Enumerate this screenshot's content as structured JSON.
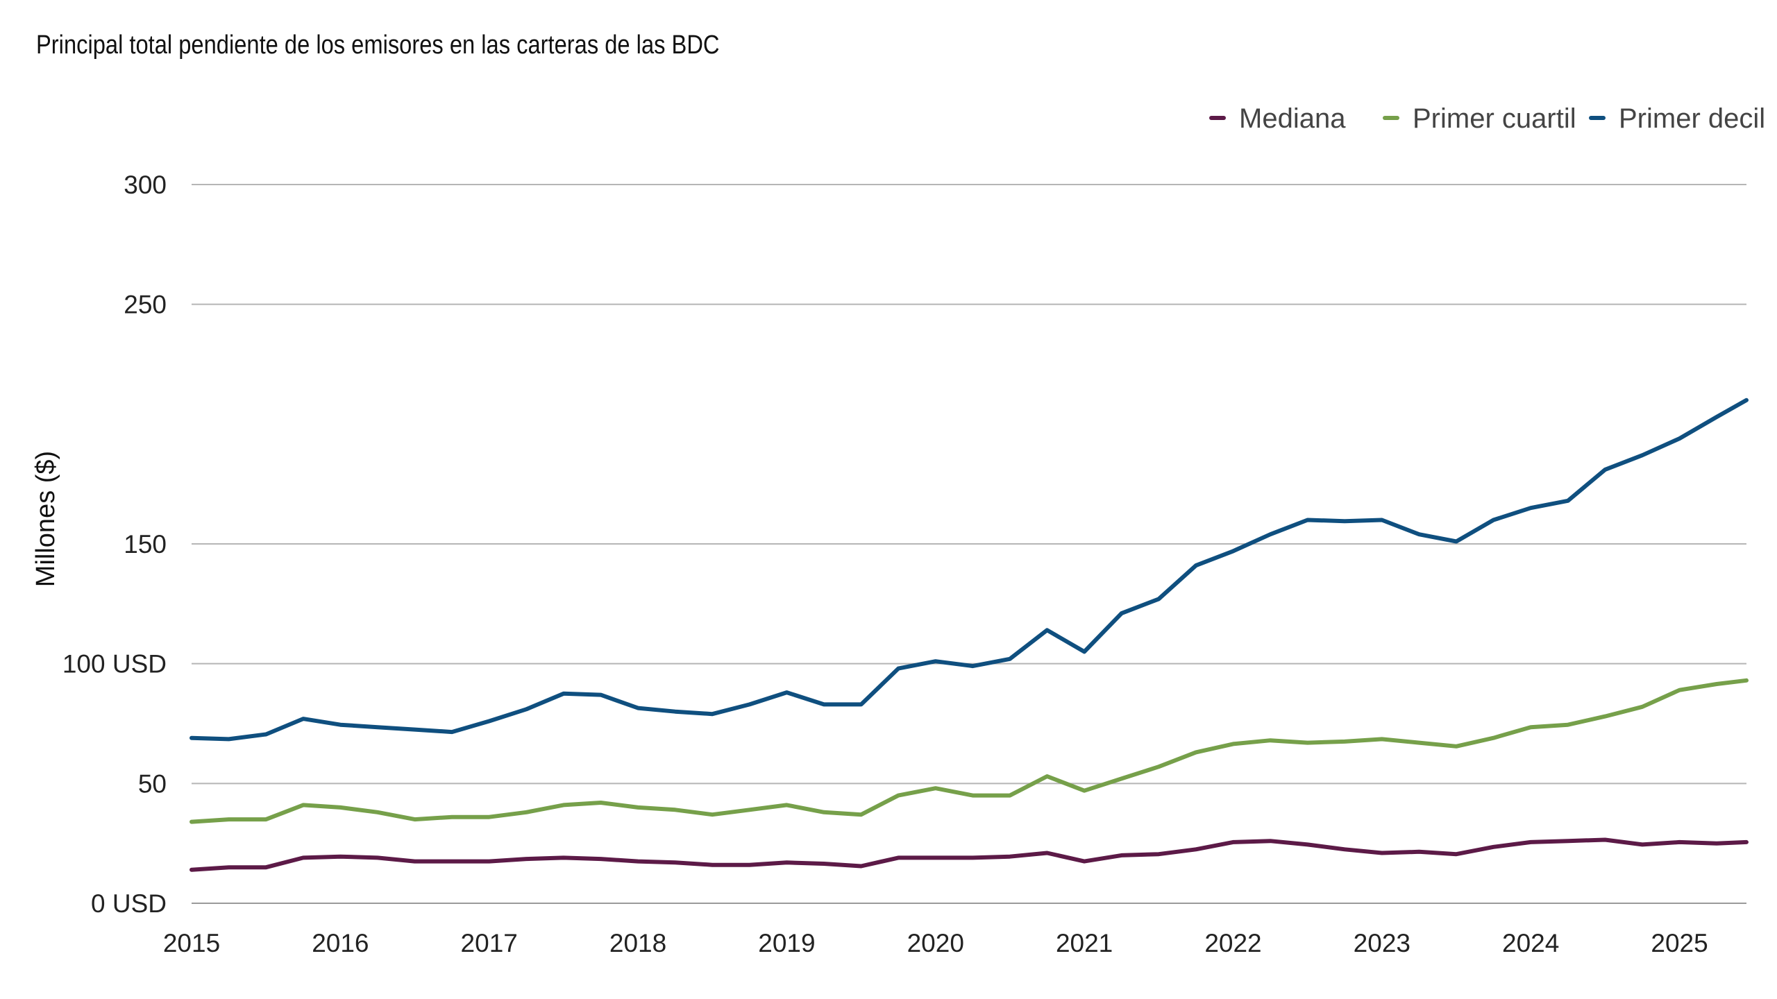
{
  "chart_data": {
    "type": "line",
    "title": "Principal total pendiente de los emisores en las carteras de las BDC",
    "xlabel": "",
    "ylabel": "Millones ($)",
    "xlim": [
      2015,
      2025.45
    ],
    "ylim": [
      0,
      300
    ],
    "x_ticks": [
      2015,
      2016,
      2017,
      2018,
      2019,
      2020,
      2021,
      2022,
      2023,
      2024,
      2025
    ],
    "x_tick_labels": [
      "2015",
      "2016",
      "2017",
      "2018",
      "2019",
      "2020",
      "2021",
      "2022",
      "2023",
      "2024",
      "2025"
    ],
    "y_ticks": [
      0,
      50,
      100,
      150,
      250,
      300
    ],
    "y_tick_labels": [
      "0 USD",
      "50",
      "100 USD",
      "150",
      "250",
      "300"
    ],
    "grid": "horizontal",
    "legend_position": "top-right",
    "x": [
      2015.0,
      2015.25,
      2015.5,
      2015.75,
      2016.0,
      2016.25,
      2016.5,
      2016.75,
      2017.0,
      2017.25,
      2017.5,
      2017.75,
      2018.0,
      2018.25,
      2018.5,
      2018.75,
      2019.0,
      2019.25,
      2019.5,
      2019.75,
      2020.0,
      2020.25,
      2020.5,
      2020.75,
      2021.0,
      2021.25,
      2021.5,
      2021.75,
      2022.0,
      2022.25,
      2022.5,
      2022.75,
      2023.0,
      2023.25,
      2023.5,
      2023.75,
      2024.0,
      2024.25,
      2024.5,
      2024.75,
      2025.0,
      2025.25,
      2025.45
    ],
    "series": [
      {
        "name": "Mediana",
        "color": "#5c1a47",
        "values": [
          14,
          15,
          15,
          19,
          19.5,
          19,
          17.5,
          17.5,
          17.5,
          18.5,
          19,
          18.5,
          17.5,
          17,
          16,
          16,
          17,
          16.5,
          15.5,
          19,
          19,
          19,
          19.5,
          21,
          17.5,
          20,
          20.5,
          22.5,
          25.5,
          26,
          24.5,
          22.5,
          21,
          21.5,
          20.5,
          23.5,
          25.5,
          26,
          26.5,
          24.5,
          25.5,
          25,
          25.5
        ]
      },
      {
        "name": "Primer cuartil",
        "color": "#76a04a",
        "values": [
          34,
          35,
          35,
          41,
          40,
          38,
          35,
          36,
          36,
          38,
          41,
          42,
          40,
          39,
          37,
          39,
          41,
          38,
          37,
          45,
          48,
          45,
          45,
          53,
          47,
          52,
          57,
          63,
          66.5,
          68,
          67,
          67.5,
          68.5,
          67,
          65.5,
          69,
          73.5,
          74.5,
          78,
          82,
          89,
          91.5,
          93
        ]
      },
      {
        "name": "Primer decil",
        "color": "#0f4f7f",
        "values": [
          69,
          68.5,
          70.5,
          77,
          74.5,
          73.5,
          72.5,
          71.5,
          76,
          81,
          87.5,
          87,
          81.5,
          80,
          79,
          83,
          88,
          83,
          83,
          98,
          101,
          99,
          102,
          114,
          105,
          121,
          127,
          141,
          147,
          154,
          160,
          159.5,
          160,
          154,
          151,
          160,
          165,
          168,
          181,
          187,
          194,
          203,
          210
        ]
      }
    ]
  }
}
